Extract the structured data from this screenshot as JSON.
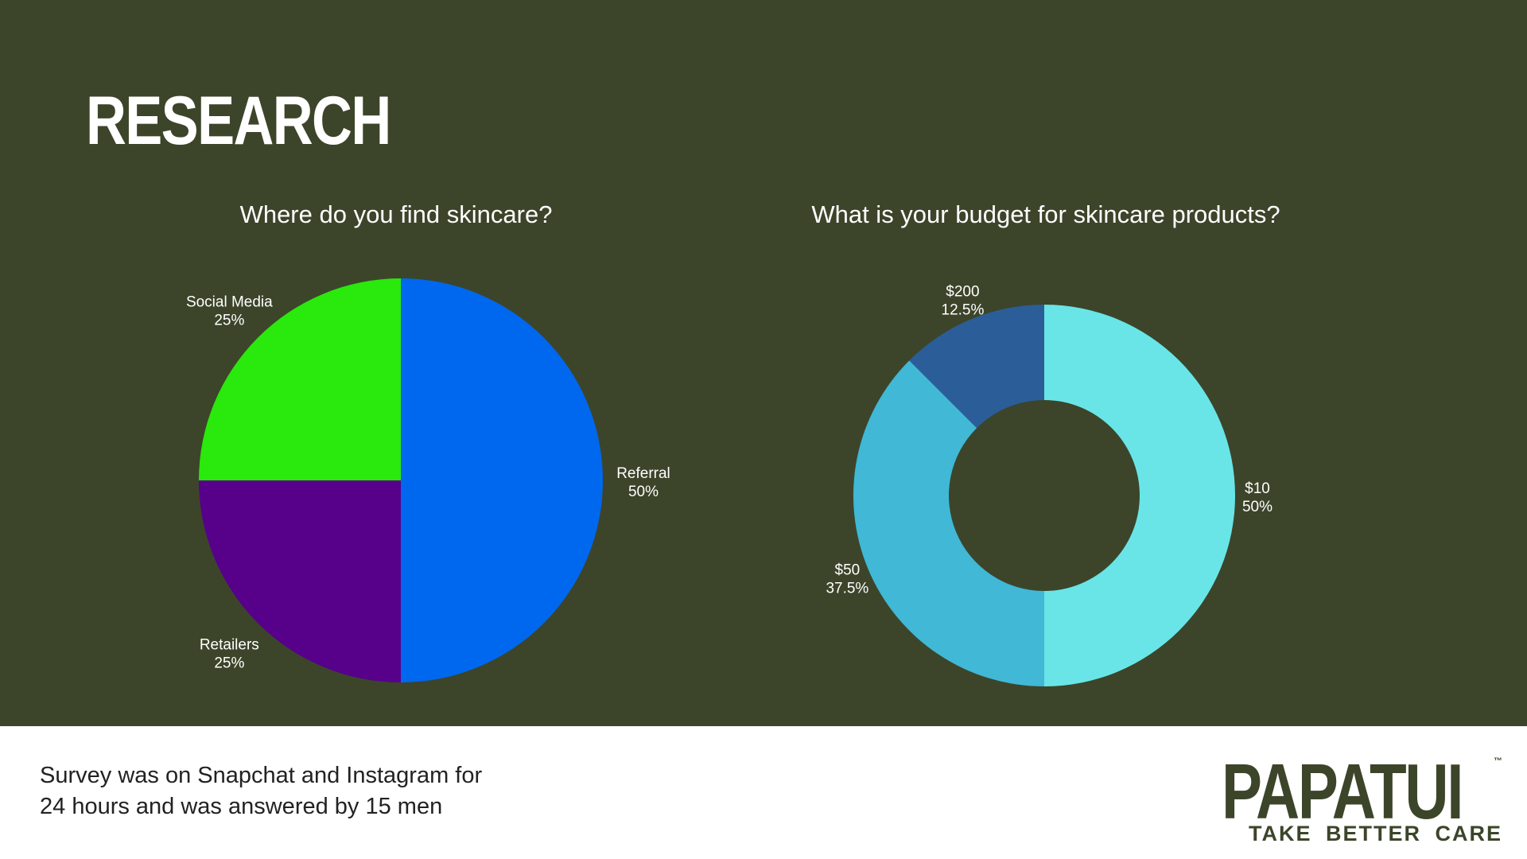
{
  "page": {
    "title": "RESEARCH"
  },
  "chart_data": [
    {
      "type": "pie",
      "title": "Where do you find skincare?",
      "categories": [
        "Referral",
        "Retailers",
        "Social Media"
      ],
      "values": [
        50,
        25,
        25
      ],
      "value_labels": [
        "50%",
        "25%",
        "25%"
      ],
      "colors": [
        "#0068ee",
        "#57008a",
        "#2ae90c"
      ]
    },
    {
      "type": "donut",
      "title": "What is your budget for skincare products?",
      "categories": [
        "$10",
        "$50",
        "$200"
      ],
      "values": [
        50,
        37.5,
        12.5
      ],
      "value_labels": [
        "50%",
        "37.5%",
        "12.5%"
      ],
      "colors": [
        "#69e5e8",
        "#40b8d6",
        "#2b5e98"
      ]
    }
  ],
  "footnote": {
    "line1": "Survey was on Snapchat and Instagram for",
    "line2": "24 hours and was answered by 15 men"
  },
  "brand": {
    "name": "PAPATUI",
    "trademark": "™",
    "tagline": "TAKE BETTER CARE"
  },
  "colors": {
    "background": "#3c452a",
    "footer": "#ffffff",
    "brand": "#3c452a"
  }
}
